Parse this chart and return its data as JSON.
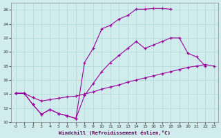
{
  "xlabel": "Windchill (Refroidissement éolien,°C)",
  "bg_color": "#d0ecec",
  "grid_color": "#b0d8d8",
  "line_color": "#990099",
  "xlim": [
    -0.5,
    23.5
  ],
  "ylim": [
    10,
    27
  ],
  "xticks": [
    0,
    1,
    2,
    3,
    4,
    5,
    6,
    7,
    8,
    9,
    10,
    11,
    12,
    13,
    14,
    15,
    16,
    17,
    18,
    19,
    20,
    21,
    22,
    23
  ],
  "yticks": [
    10,
    12,
    14,
    16,
    18,
    20,
    22,
    24,
    26
  ],
  "line1_x": [
    0,
    1,
    2,
    3,
    4,
    5,
    6,
    7,
    8,
    9,
    10,
    11,
    12,
    13,
    14,
    15,
    16,
    17,
    18,
    19,
    20,
    21,
    22,
    23
  ],
  "line1_y": [
    14.1,
    14.1,
    13.5,
    13.0,
    13.2,
    13.4,
    13.6,
    13.7,
    14.0,
    14.3,
    14.7,
    15.0,
    15.3,
    15.7,
    16.0,
    16.3,
    16.6,
    16.9,
    17.2,
    17.5,
    17.8,
    18.0,
    18.2,
    18.0
  ],
  "line2_x": [
    0,
    1,
    2,
    3,
    4,
    5,
    6,
    7,
    8,
    9,
    10,
    11,
    12,
    13,
    14,
    15,
    16,
    17,
    18,
    19,
    20,
    21,
    22
  ],
  "line2_y": [
    14.1,
    14.1,
    12.5,
    11.1,
    11.8,
    11.2,
    10.9,
    10.5,
    13.8,
    15.5,
    17.2,
    18.5,
    19.5,
    20.5,
    21.5,
    20.5,
    21.0,
    21.5,
    22.0,
    22.0,
    19.8,
    19.3,
    18.0
  ],
  "line3_x": [
    0,
    1,
    2,
    3,
    4,
    5,
    6,
    7,
    8,
    9,
    10,
    11,
    12,
    13,
    14,
    15,
    16,
    17,
    18
  ],
  "line3_y": [
    14.1,
    14.1,
    12.5,
    11.1,
    11.8,
    11.2,
    10.9,
    10.5,
    18.5,
    20.5,
    23.3,
    23.8,
    24.7,
    25.2,
    26.1,
    26.1,
    26.2,
    26.2,
    26.1
  ]
}
